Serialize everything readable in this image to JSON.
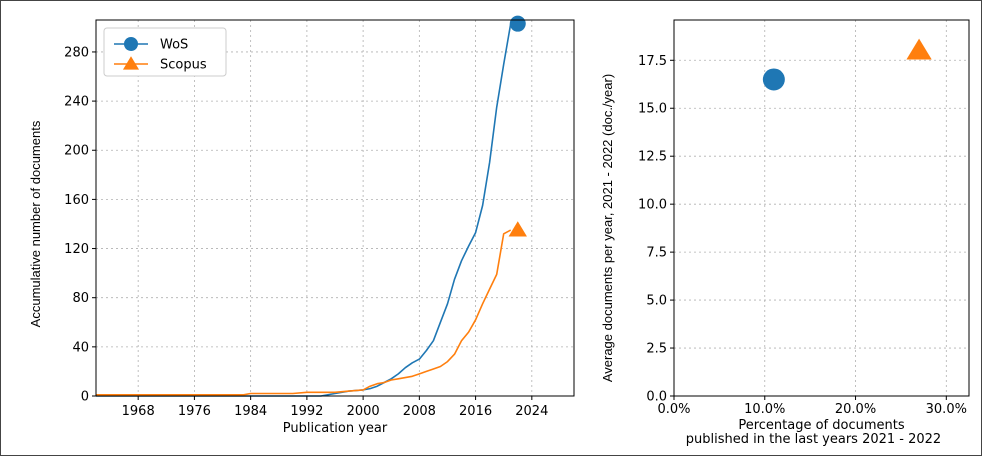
{
  "chart_data": [
    {
      "type": "line",
      "xlabel": "Publication year",
      "ylabel": "Accumulative number of documents",
      "xlim": [
        1962,
        2030
      ],
      "ylim": [
        0,
        306
      ],
      "xticks": [
        1968,
        1976,
        1984,
        1992,
        2000,
        2008,
        2016,
        2024
      ],
      "yticks": [
        0,
        40,
        80,
        120,
        160,
        200,
        240,
        280
      ],
      "grid": true,
      "legend_position": "top-left",
      "series": [
        {
          "name": "WoS",
          "color": "#1f77b4",
          "marker": "circle",
          "x": [
            1962,
            1992,
            1994,
            1996,
            1998,
            2000,
            2001,
            2002,
            2003,
            2004,
            2005,
            2006,
            2007,
            2008,
            2009,
            2010,
            2011,
            2012,
            2013,
            2014,
            2015,
            2016,
            2017,
            2018,
            2019,
            2020,
            2021
          ],
          "y": [
            0,
            0,
            0,
            2,
            4,
            5,
            6,
            8,
            11,
            14,
            18,
            23,
            27,
            30,
            37,
            45,
            60,
            75,
            95,
            110,
            122,
            133,
            155,
            190,
            235,
            270,
            303
          ],
          "end_marker": {
            "x": 2022,
            "y": 303
          }
        },
        {
          "name": "Scopus",
          "color": "#ff7f0e",
          "marker": "triangle",
          "x": [
            1962,
            1983,
            1984,
            1990,
            1992,
            1996,
            1998,
            2000,
            2001,
            2002,
            2003,
            2004,
            2005,
            2006,
            2007,
            2008,
            2009,
            2010,
            2011,
            2012,
            2013,
            2014,
            2015,
            2016,
            2017,
            2018,
            2019,
            2020,
            2021
          ],
          "y": [
            1,
            1,
            2,
            2,
            3,
            3,
            4,
            5,
            8,
            10,
            11,
            13,
            14,
            15,
            16,
            18,
            20,
            22,
            24,
            28,
            34,
            45,
            52,
            62,
            75,
            87,
            99,
            132,
            135
          ],
          "end_marker": {
            "x": 2022,
            "y": 135
          }
        }
      ]
    },
    {
      "type": "scatter",
      "xlabel": "Percentage of documents\npublished in the last years 2021 - 2022",
      "ylabel": "Average documents per year, 2021 - 2022 (doc./year)",
      "xlim": [
        0,
        0.325
      ],
      "ylim": [
        0,
        19.6
      ],
      "xticks": [
        "0.0%",
        "10.0%",
        "20.0%",
        "30.0%"
      ],
      "yticks": [
        "0.0",
        "2.5",
        "5.0",
        "7.5",
        "10.0",
        "12.5",
        "15.0",
        "17.5"
      ],
      "grid": true,
      "points": [
        {
          "name": "WoS",
          "x": 0.11,
          "y": 16.5,
          "color": "#1f77b4",
          "marker": "circle"
        },
        {
          "name": "Scopus",
          "x": 0.27,
          "y": 18.0,
          "color": "#ff7f0e",
          "marker": "triangle"
        }
      ]
    }
  ]
}
